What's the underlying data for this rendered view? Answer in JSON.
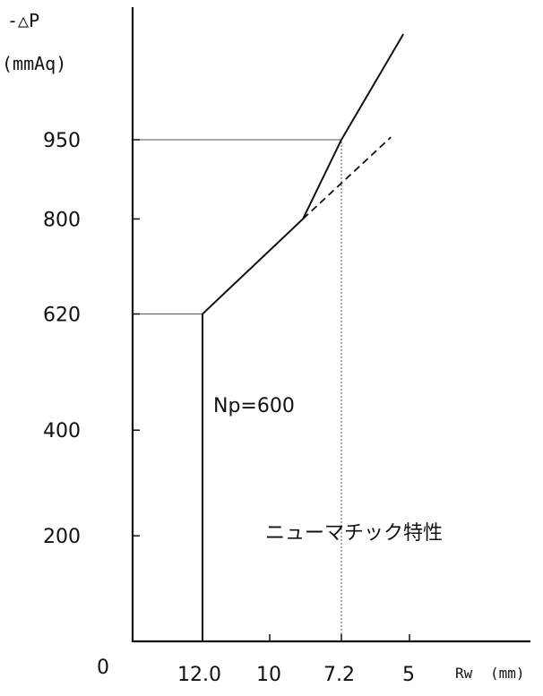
{
  "chart_data": {
    "type": "line",
    "ylabel_top": "-△P",
    "ylabel_unit": "(mmAq)",
    "xlabel": "Rw",
    "xlabel_unit": "(mm)",
    "origin_label": "0",
    "y_ticks": [
      {
        "label": "200",
        "value": 200
      },
      {
        "label": "400",
        "value": 400
      },
      {
        "label": "620",
        "value": 620
      },
      {
        "label": "800",
        "value": 800
      },
      {
        "label": "950",
        "value": 950
      }
    ],
    "x_ticks": [
      {
        "label": "12.0",
        "value": 12.0
      },
      {
        "label": "10",
        "value": 10
      },
      {
        "label": "7.2",
        "value": 7.2
      },
      {
        "label": "5",
        "value": 5
      }
    ],
    "series": [
      {
        "style": "solid",
        "points": [
          [
            12.0,
            0
          ],
          [
            12.0,
            620
          ],
          [
            8.7,
            800
          ],
          [
            7.2,
            950
          ],
          [
            5.2,
            1150
          ]
        ]
      },
      {
        "style": "dashed",
        "points": [
          [
            8.7,
            800
          ],
          [
            5.6,
            955
          ]
        ]
      }
    ],
    "reference_lines": [
      {
        "kind": "horizontal",
        "y": 620,
        "x_to": 12.0
      },
      {
        "kind": "horizontal",
        "y": 950,
        "x_to": 7.2
      },
      {
        "kind": "vertical",
        "x": 7.2,
        "y_from": 0,
        "y_to": 950
      }
    ],
    "annotations": [
      {
        "text": "Np=600"
      },
      {
        "text": "ニューマチック特性"
      }
    ]
  }
}
